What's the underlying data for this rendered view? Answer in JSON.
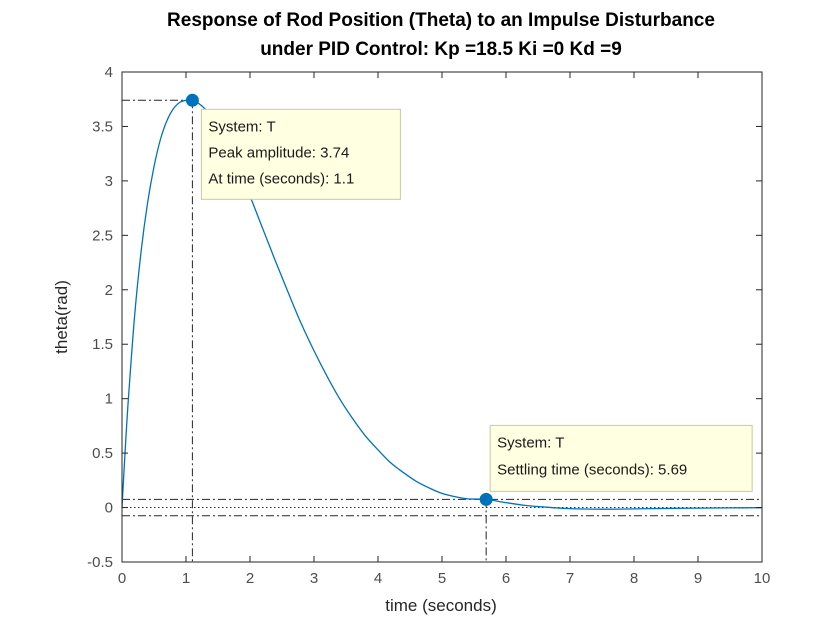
{
  "chart_data": {
    "type": "line",
    "title_line1": "Response of Rod Position (Theta) to an Impulse Disturbance",
    "title_line2": "under PID Control: Kp =18.5 Ki =0 Kd =9",
    "xlabel": "time (seconds)",
    "ylabel": "theta(rad)",
    "xlim": [
      0,
      10
    ],
    "ylim": [
      -0.5,
      4
    ],
    "x_ticks": [
      0,
      1,
      2,
      3,
      4,
      5,
      6,
      7,
      8,
      9,
      10
    ],
    "x_tick_labels": [
      "0",
      "1",
      "2",
      "3",
      "4",
      "5",
      "6",
      "7",
      "8",
      "9",
      "10"
    ],
    "y_ticks": [
      -0.5,
      0,
      0.5,
      1,
      1.5,
      2,
      2.5,
      3,
      3.5,
      4
    ],
    "y_tick_labels": [
      "-0.5",
      "0",
      "0.5",
      "1",
      "1.5",
      "2",
      "2.5",
      "3",
      "3.5",
      "4"
    ],
    "grid": false,
    "series": [
      {
        "color": "#0072bd",
        "x": [
          0,
          0.05,
          0.1,
          0.2,
          0.3,
          0.4,
          0.5,
          0.6,
          0.7,
          0.8,
          0.9,
          1.0,
          1.1,
          1.2,
          1.3,
          1.4,
          1.5,
          1.6,
          1.8,
          2.0,
          2.2,
          2.4,
          2.6,
          2.8,
          3.0,
          3.2,
          3.4,
          3.6,
          3.8,
          4.0,
          4.2,
          4.4,
          4.6,
          4.8,
          5.0,
          5.2,
          5.4,
          5.69,
          6.0,
          6.3,
          6.6,
          7.0,
          7.5,
          8.0,
          8.5,
          9.0,
          9.5,
          10.0
        ],
        "y": [
          0,
          0.53,
          1.0,
          1.78,
          2.36,
          2.8,
          3.13,
          3.38,
          3.55,
          3.66,
          3.72,
          3.74,
          3.74,
          3.71,
          3.66,
          3.59,
          3.5,
          3.39,
          3.14,
          2.86,
          2.56,
          2.26,
          1.97,
          1.69,
          1.44,
          1.21,
          1.0,
          0.82,
          0.66,
          0.53,
          0.41,
          0.32,
          0.24,
          0.18,
          0.13,
          0.1,
          0.08,
          0.075,
          0.045,
          0.02,
          0.005,
          -0.01,
          -0.015,
          -0.012,
          -0.008,
          -0.005,
          -0.003,
          -0.002
        ]
      }
    ],
    "reference_lines": {
      "steady_state": 0,
      "settling_band": [
        0.075,
        -0.075
      ]
    },
    "markers": [
      {
        "name": "peak",
        "x": 1.1,
        "y": 3.74,
        "lines": [
          "System: T",
          "Peak amplitude: 3.74",
          "At time (seconds): 1.1"
        ]
      },
      {
        "name": "settling",
        "x": 5.69,
        "y": 0.075,
        "lines": [
          "System: T",
          "Settling time (seconds): 5.69"
        ]
      }
    ],
    "colors": {
      "line": "#0072bd",
      "marker": "#0072bd",
      "datatip_bg": "#ffffe1",
      "datatip_border": "#c9c9a0",
      "guide": "#262626",
      "axes": "#262626"
    }
  }
}
